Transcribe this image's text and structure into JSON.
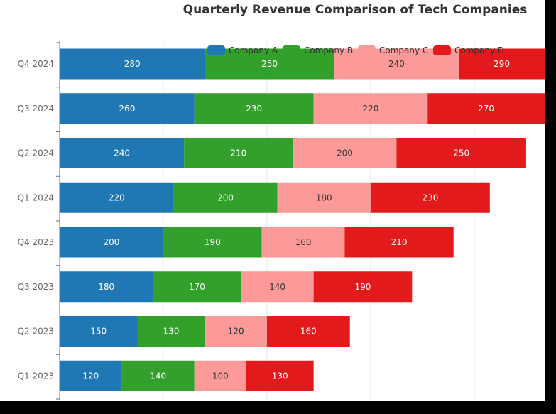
{
  "chart_data": {
    "type": "bar",
    "orientation": "horizontal",
    "stacked": true,
    "title": "Quarterly Revenue Comparison of Tech Companies",
    "categories": [
      "Q1 2023",
      "Q2 2023",
      "Q3 2023",
      "Q4 2023",
      "Q1 2024",
      "Q2 2024",
      "Q3 2024",
      "Q4 2024"
    ],
    "series": [
      {
        "name": "Company A",
        "color": "#1f77b4",
        "label_color": "#ffffff",
        "values": [
          120,
          150,
          180,
          200,
          220,
          240,
          260,
          280
        ]
      },
      {
        "name": "Company B",
        "color": "#33a02c",
        "label_color": "#ffffff",
        "values": [
          140,
          130,
          170,
          190,
          200,
          210,
          230,
          250
        ]
      },
      {
        "name": "Company C",
        "color": "#fb9a99",
        "label_color": "#333333",
        "values": [
          100,
          120,
          140,
          160,
          180,
          200,
          220,
          240
        ]
      },
      {
        "name": "Company D",
        "color": "#e31a1c",
        "label_color": "#ffffff",
        "values": [
          130,
          160,
          190,
          210,
          230,
          250,
          270,
          290
        ]
      }
    ],
    "xlim": [
      0,
      1200
    ],
    "grid": true,
    "legend_position": "top-right"
  }
}
